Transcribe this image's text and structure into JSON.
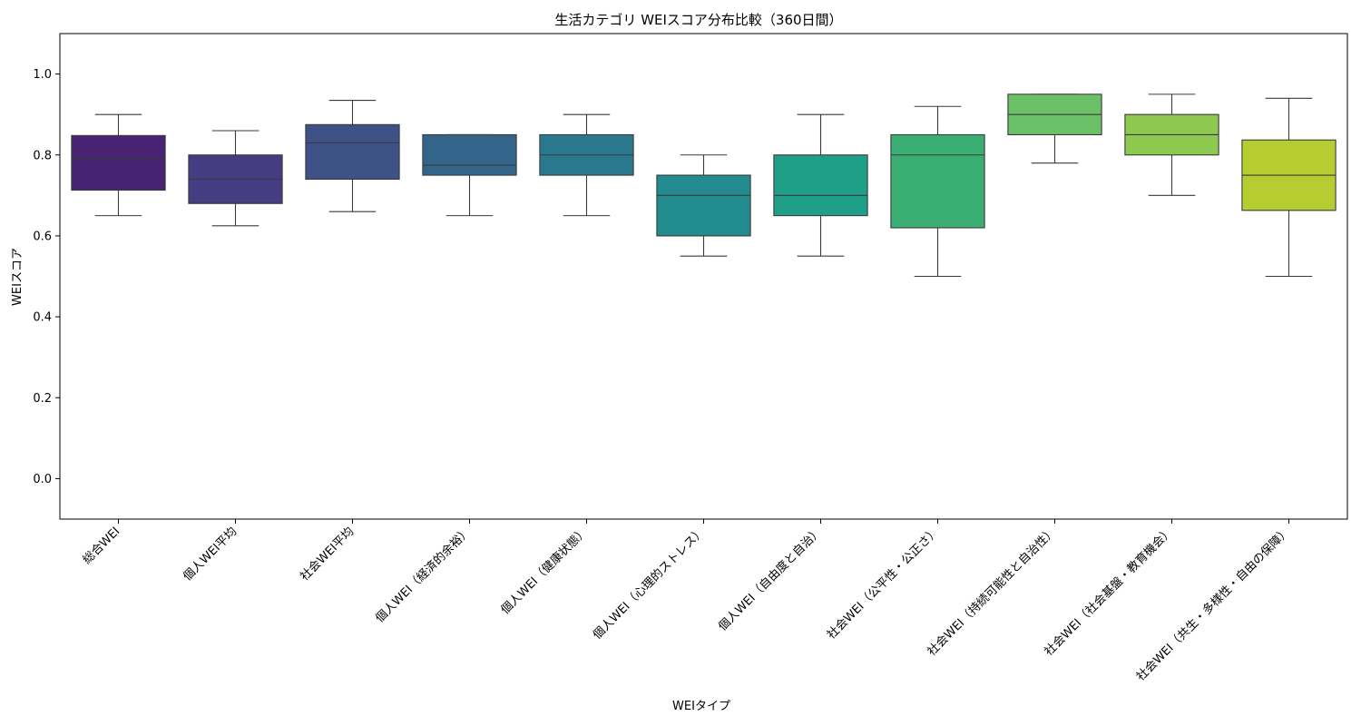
{
  "chart_data": {
    "type": "box",
    "title": "生活カテゴリ WEIスコア分布比較（360日間）",
    "xlabel": "WEIタイプ",
    "ylabel": "WEIスコア",
    "ylim": [
      -0.1,
      1.1
    ],
    "yticks": [
      "0.0",
      "0.2",
      "0.4",
      "0.6",
      "0.8",
      "1.0"
    ],
    "grid": false,
    "categories": [
      "総合WEI",
      "個人WEI平均",
      "社会WEI平均",
      "個人WEI（経済的余裕）",
      "個人WEI（健康状態）",
      "個人WEI（心理的ストレス）",
      "個人WEI（自由度と自治）",
      "社会WEI（公平性・公正さ）",
      "社会WEI（持続可能性と自治性）",
      "社会WEI（社会基盤・教育機会）",
      "社会WEI（共生・多様性・自由の保障）"
    ],
    "boxes": [
      {
        "min": 0.65,
        "q1": 0.713,
        "median": 0.79,
        "q3": 0.848,
        "max": 0.9,
        "color": "#482374"
      },
      {
        "min": 0.625,
        "q1": 0.68,
        "median": 0.74,
        "q3": 0.8,
        "max": 0.86,
        "color": "#453c82"
      },
      {
        "min": 0.66,
        "q1": 0.74,
        "median": 0.83,
        "q3": 0.875,
        "max": 0.935,
        "color": "#3e5288"
      },
      {
        "min": 0.65,
        "q1": 0.75,
        "median": 0.775,
        "q3": 0.85,
        "max": 0.85,
        "color": "#33658b"
      },
      {
        "min": 0.65,
        "q1": 0.75,
        "median": 0.8,
        "q3": 0.85,
        "max": 0.9,
        "color": "#2a788e"
      },
      {
        "min": 0.55,
        "q1": 0.6,
        "median": 0.7,
        "q3": 0.75,
        "max": 0.8,
        "color": "#228b8d"
      },
      {
        "min": 0.55,
        "q1": 0.65,
        "median": 0.7,
        "q3": 0.8,
        "max": 0.9,
        "color": "#1f9f88"
      },
      {
        "min": 0.5,
        "q1": 0.62,
        "median": 0.8,
        "q3": 0.85,
        "max": 0.92,
        "color": "#3bae73"
      },
      {
        "min": 0.78,
        "q1": 0.85,
        "median": 0.9,
        "q3": 0.95,
        "max": 0.95,
        "color": "#6cc168"
      },
      {
        "min": 0.7,
        "q1": 0.8,
        "median": 0.85,
        "q3": 0.9,
        "max": 0.95,
        "color": "#8dc850"
      },
      {
        "min": 0.5,
        "q1": 0.663,
        "median": 0.75,
        "q3": 0.837,
        "max": 0.94,
        "color": "#b5cd31"
      }
    ]
  }
}
